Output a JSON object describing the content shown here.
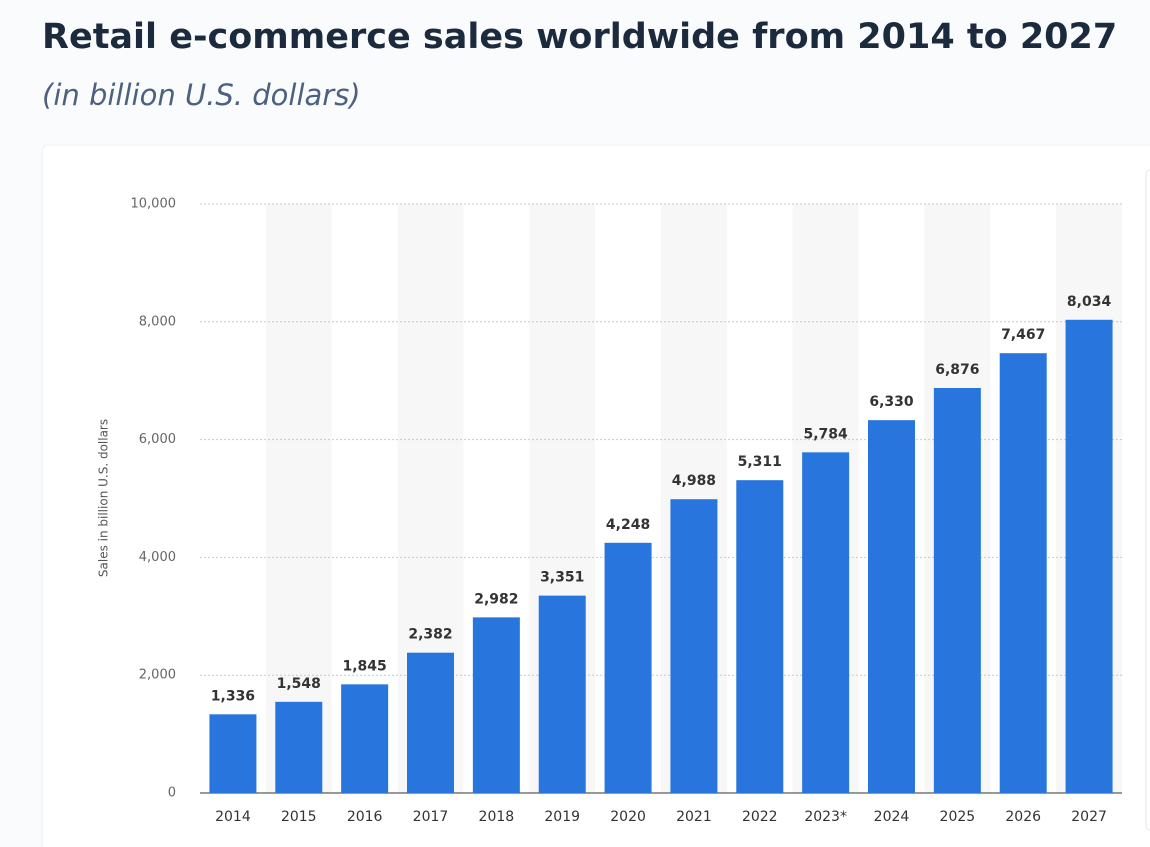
{
  "chart_data": {
    "type": "bar",
    "title": "Retail e-commerce sales worldwide from 2014 to 2027",
    "subtitle": "(in billion U.S. dollars)",
    "y_label": "Sales in billion U.S. dollars",
    "categories": [
      "2014",
      "2015",
      "2016",
      "2017",
      "2018",
      "2019",
      "2020",
      "2021",
      "2022",
      "2023*",
      "2024",
      "2025",
      "2026",
      "2027"
    ],
    "values": [
      1336,
      1548,
      1845,
      2382,
      2982,
      3351,
      4248,
      4988,
      5311,
      5784,
      6330,
      6876,
      7467,
      8034
    ],
    "value_labels": [
      "1,336",
      "1,548",
      "1,845",
      "2,382",
      "2,982",
      "3,351",
      "4,248",
      "4,988",
      "5,311",
      "5,784",
      "6,330",
      "6,876",
      "7,467",
      "8,034"
    ],
    "color": "#2876dd",
    "ylim": [
      0,
      10000
    ],
    "yticks": [
      0,
      {
        "value": 2000,
        "label": "2,000"
      },
      {
        "value": 4000,
        "label": "4,000"
      },
      {
        "value": 6000,
        "label": "6,000"
      },
      {
        "value": 8000,
        "label": "8,000"
      },
      {
        "value": 10000,
        "label": "10,000"
      }
    ],
    "grid": true
  }
}
